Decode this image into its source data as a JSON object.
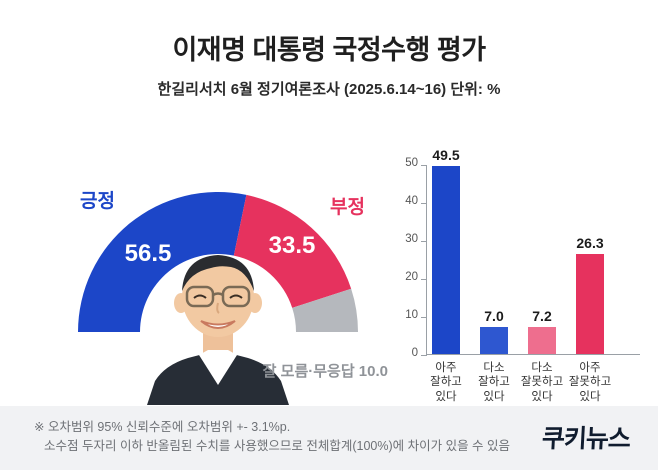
{
  "header": {
    "title": "이재명 대통령 국정수행 평가",
    "subtitle": "한길리서치 6월 정기여론조사 (2025.6.14~16) 단위: %"
  },
  "chart_data": [
    {
      "type": "pie",
      "variant": "half-donut",
      "title": "이재명 대통령 국정수행 평가",
      "unit": "%",
      "segments": [
        {
          "label": "긍정",
          "value": 56.5,
          "value_label": "56.5",
          "color": "#1c46c8"
        },
        {
          "label": "부정",
          "value": 33.5,
          "value_label": "33.5",
          "color": "#e6325e"
        },
        {
          "label": "잘 모름·무응답",
          "value": 10.0,
          "value_label": "잘 모름·무응답 10.0",
          "color": "#b5b8bd"
        }
      ]
    },
    {
      "type": "bar",
      "categories": [
        "아주\n잘하고\n있다",
        "다소\n잘하고\n있다",
        "다소\n잘못하고\n있다",
        "아주\n잘못하고\n있다"
      ],
      "values": [
        49.5,
        7.0,
        7.2,
        26.3
      ],
      "value_labels": [
        "49.5",
        "7.0",
        "7.2",
        "26.3"
      ],
      "colors": [
        "#1c46c8",
        "#2e57d0",
        "#ee6e8e",
        "#e6325e"
      ],
      "ylim": [
        0,
        50
      ],
      "yticks": [
        0,
        10,
        20,
        30,
        40,
        50
      ],
      "grid": false,
      "legend": "none"
    }
  ],
  "footer": {
    "note_line1": "※ 오차범위 95% 신뢰수준에 오차범위 +- 3.1%p.",
    "note_line2": "소수점 두자리 이하 반올림된 수치를 사용했으므로 전체합계(100%)에 차이가 있을 수 있음",
    "logo": "쿠키뉴스"
  }
}
